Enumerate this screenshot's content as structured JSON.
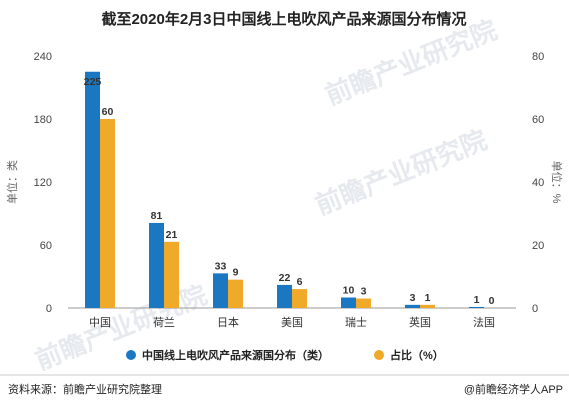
{
  "chart_data": {
    "type": "bar",
    "title": "截至2020年2月3日中国线上电吹风产品来源国分布情况",
    "categories": [
      "中国",
      "荷兰",
      "日本",
      "美国",
      "瑞士",
      "英国",
      "法国"
    ],
    "series": [
      {
        "name": "中国线上电吹风产品来源国分布（类）",
        "axis": "left",
        "color": "#1a78c2",
        "values": [
          225,
          81,
          33,
          22,
          10,
          3,
          1
        ]
      },
      {
        "name": "占比（%）",
        "axis": "right",
        "color": "#f0a928",
        "values": [
          60,
          21,
          9,
          6,
          3,
          1,
          0
        ]
      }
    ],
    "ylabel_left": "单位：类",
    "ylabel_right": "单位：%",
    "ylim_left": [
      0,
      240
    ],
    "ylim_right": [
      0,
      80
    ],
    "yticks_left": [
      "0",
      "60",
      "120",
      "180",
      "240"
    ],
    "yticks_right": [
      "0",
      "20",
      "40",
      "60",
      "80"
    ],
    "grid": false,
    "legend_position": "bottom"
  },
  "footer": {
    "source": "资料来源：前瞻产业研究院整理",
    "brand": "@前瞻经济学人APP"
  },
  "watermark": {
    "text": "前瞻产业研究院"
  }
}
